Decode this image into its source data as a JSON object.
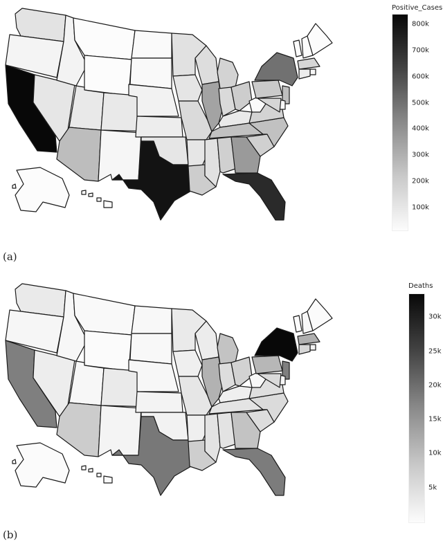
{
  "panels": [
    {
      "label": "(a)",
      "legend": {
        "title": "Positive_Cases",
        "ticks": [
          {
            "text": "800k",
            "value": 800000
          },
          {
            "text": "700k",
            "value": 700000
          },
          {
            "text": "600k",
            "value": 600000
          },
          {
            "text": "500k",
            "value": 500000
          },
          {
            "text": "400k",
            "value": 400000
          },
          {
            "text": "300k",
            "value": 300000
          },
          {
            "text": "200k",
            "value": 200000
          },
          {
            "text": "100k",
            "value": 100000
          }
        ],
        "range": [
          15000,
          840000
        ]
      },
      "states": {
        "WA": 90000,
        "OR": 38000,
        "CA": 840000,
        "NV": 82000,
        "ID": 40000,
        "MT": 15000,
        "WY": 8000,
        "UT": 70000,
        "AZ": 215000,
        "CO": 70000,
        "NM": 32000,
        "TX": 800000,
        "ND": 20000,
        "SD": 22000,
        "NE": 45000,
        "KS": 60000,
        "OK": 80000,
        "MN": 95000,
        "IA": 85000,
        "MO": 120000,
        "AR": 80000,
        "LA": 160000,
        "WI": 110000,
        "IL": 300000,
        "MI": 140000,
        "IN": 120000,
        "OH": 160000,
        "KY": 70000,
        "TN": 200000,
        "MS": 95000,
        "AL": 150000,
        "GA": 330000,
        "FL": 720000,
        "SC": 150000,
        "NC": 200000,
        "VA": 140000,
        "WV": 20000,
        "PA": 170000,
        "NY": 470000,
        "VT": 5000,
        "NH": 9000,
        "ME": 6000,
        "MA": 130000,
        "RI": 28000,
        "CT": 60000,
        "NJ": 210000,
        "DE": 22000,
        "MD": 130000,
        "AK": 8000,
        "HI": 13000
      }
    },
    {
      "label": "(b)",
      "legend": {
        "title": "Deaths",
        "ticks": [
          {
            "text": "30k",
            "value": 30000
          },
          {
            "text": "25k",
            "value": 25000
          },
          {
            "text": "20k",
            "value": 20000
          },
          {
            "text": "15k",
            "value": 15000
          },
          {
            "text": "10k",
            "value": 10000
          },
          {
            "text": "5k",
            "value": 5000
          }
        ],
        "range": [
          0,
          33500
        ]
      },
      "states": {
        "WA": 2100,
        "OR": 700,
        "CA": 16500,
        "NV": 1800,
        "ID": 600,
        "MT": 300,
        "WY": 100,
        "UT": 550,
        "AZ": 6000,
        "CO": 2100,
        "NM": 900,
        "TX": 17500,
        "ND": 400,
        "SD": 400,
        "NE": 600,
        "KS": 1000,
        "OK": 1200,
        "MN": 2200,
        "IA": 1500,
        "MO": 2600,
        "AR": 1500,
        "LA": 5800,
        "WI": 1900,
        "IL": 9500,
        "MI": 7200,
        "IN": 3800,
        "OH": 5300,
        "KY": 1500,
        "TN": 2900,
        "MS": 3100,
        "AL": 3100,
        "GA": 7200,
        "FL": 17000,
        "SC": 3800,
        "NC": 4100,
        "VA": 3600,
        "WV": 400,
        "PA": 8800,
        "NY": 33500,
        "VT": 60,
        "NH": 470,
        "ME": 150,
        "MA": 10000,
        "RI": 1200,
        "CT": 4600,
        "NJ": 16500,
        "DE": 680,
        "MD": 4200,
        "AK": 80,
        "HI": 220
      }
    }
  ]
}
